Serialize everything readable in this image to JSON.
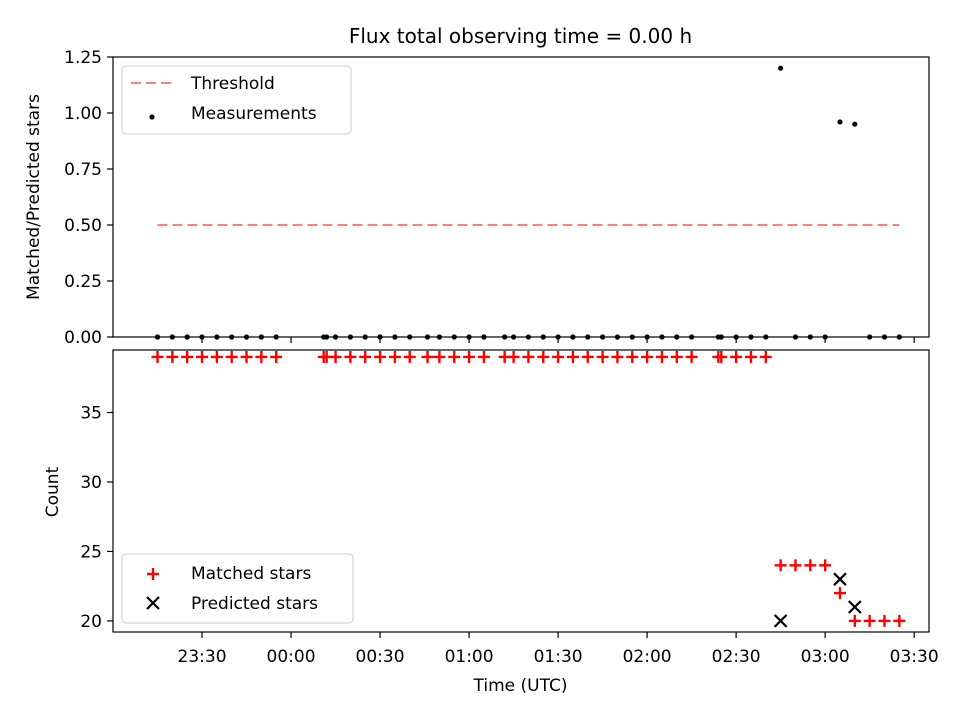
{
  "chart_data": [
    {
      "type": "scatter",
      "title": "Flux total observing time = 0.00 h",
      "xlabel": "",
      "ylabel": "Matched/Predicted stars",
      "ylim": [
        0,
        1.25
      ],
      "yticks": [
        "0.00",
        "0.25",
        "0.50",
        "0.75",
        "1.00",
        "1.25"
      ],
      "legend_position": "top-left",
      "threshold": {
        "name": "Threshold",
        "value": 0.5,
        "color": "#ff7f7f",
        "x_start": "23:15",
        "x_end": "03:25"
      },
      "series": [
        {
          "name": "Measurements",
          "color": "#000000",
          "marker": "dot",
          "points": [
            [
              "23:15",
              0
            ],
            [
              "23:20",
              0
            ],
            [
              "23:25",
              0
            ],
            [
              "23:30",
              0
            ],
            [
              "23:35",
              0
            ],
            [
              "23:40",
              0
            ],
            [
              "23:45",
              0
            ],
            [
              "23:50",
              0
            ],
            [
              "23:55",
              0
            ],
            [
              "00:11",
              0
            ],
            [
              "00:12",
              0
            ],
            [
              "00:15",
              0
            ],
            [
              "00:20",
              0
            ],
            [
              "00:25",
              0
            ],
            [
              "00:30",
              0
            ],
            [
              "00:35",
              0
            ],
            [
              "00:40",
              0
            ],
            [
              "00:46",
              0
            ],
            [
              "00:50",
              0
            ],
            [
              "00:55",
              0
            ],
            [
              "01:00",
              0
            ],
            [
              "01:05",
              0
            ],
            [
              "01:12",
              0
            ],
            [
              "01:15",
              0
            ],
            [
              "01:20",
              0
            ],
            [
              "01:25",
              0
            ],
            [
              "01:30",
              0
            ],
            [
              "01:35",
              0
            ],
            [
              "01:40",
              0
            ],
            [
              "01:45",
              0
            ],
            [
              "01:50",
              0
            ],
            [
              "01:55",
              0
            ],
            [
              "02:00",
              0
            ],
            [
              "02:05",
              0
            ],
            [
              "02:10",
              0
            ],
            [
              "02:15",
              0
            ],
            [
              "02:24",
              0
            ],
            [
              "02:25",
              0
            ],
            [
              "02:30",
              0
            ],
            [
              "02:35",
              0
            ],
            [
              "02:40",
              0
            ],
            [
              "02:45",
              1.2
            ],
            [
              "02:50",
              0
            ],
            [
              "02:55",
              0
            ],
            [
              "03:00",
              0
            ],
            [
              "03:05",
              0.96
            ],
            [
              "03:10",
              0.95
            ],
            [
              "03:15",
              0
            ],
            [
              "03:20",
              0
            ],
            [
              "03:25",
              0
            ]
          ]
        }
      ]
    },
    {
      "type": "scatter",
      "title": "",
      "xlabel": "Time (UTC)",
      "ylabel": "Count",
      "ylim": [
        19.2,
        39.5
      ],
      "yticks": [
        "20",
        "25",
        "30",
        "35"
      ],
      "xlim": [
        "23:00",
        "03:35"
      ],
      "xticks": [
        "23:30",
        "00:00",
        "00:30",
        "01:00",
        "01:30",
        "02:00",
        "02:30",
        "03:00",
        "03:30"
      ],
      "legend_position": "bottom-left",
      "series": [
        {
          "name": "Matched stars",
          "color": "#ff0000",
          "marker": "plus",
          "points": [
            [
              "23:15",
              39
            ],
            [
              "23:20",
              39
            ],
            [
              "23:25",
              39
            ],
            [
              "23:30",
              39
            ],
            [
              "23:35",
              39
            ],
            [
              "23:40",
              39
            ],
            [
              "23:45",
              39
            ],
            [
              "23:50",
              39
            ],
            [
              "23:55",
              39
            ],
            [
              "00:11",
              39
            ],
            [
              "00:12",
              39
            ],
            [
              "00:15",
              39
            ],
            [
              "00:20",
              39
            ],
            [
              "00:25",
              39
            ],
            [
              "00:30",
              39
            ],
            [
              "00:35",
              39
            ],
            [
              "00:40",
              39
            ],
            [
              "00:46",
              39
            ],
            [
              "00:50",
              39
            ],
            [
              "00:55",
              39
            ],
            [
              "01:00",
              39
            ],
            [
              "01:05",
              39
            ],
            [
              "01:12",
              39
            ],
            [
              "01:15",
              39
            ],
            [
              "01:20",
              39
            ],
            [
              "01:25",
              39
            ],
            [
              "01:30",
              39
            ],
            [
              "01:35",
              39
            ],
            [
              "01:40",
              39
            ],
            [
              "01:45",
              39
            ],
            [
              "01:50",
              39
            ],
            [
              "01:55",
              39
            ],
            [
              "02:00",
              39
            ],
            [
              "02:05",
              39
            ],
            [
              "02:10",
              39
            ],
            [
              "02:15",
              39
            ],
            [
              "02:24",
              39
            ],
            [
              "02:25",
              39
            ],
            [
              "02:30",
              39
            ],
            [
              "02:35",
              39
            ],
            [
              "02:40",
              39
            ],
            [
              "02:45",
              24
            ],
            [
              "02:50",
              24
            ],
            [
              "02:55",
              24
            ],
            [
              "03:00",
              24
            ],
            [
              "03:05",
              22
            ],
            [
              "03:10",
              20
            ],
            [
              "03:15",
              20
            ],
            [
              "03:20",
              20
            ],
            [
              "03:25",
              20
            ]
          ]
        },
        {
          "name": "Predicted stars",
          "color": "#000000",
          "marker": "x",
          "points": [
            [
              "02:45",
              20
            ],
            [
              "03:05",
              23
            ],
            [
              "03:10",
              21
            ]
          ]
        }
      ]
    }
  ]
}
